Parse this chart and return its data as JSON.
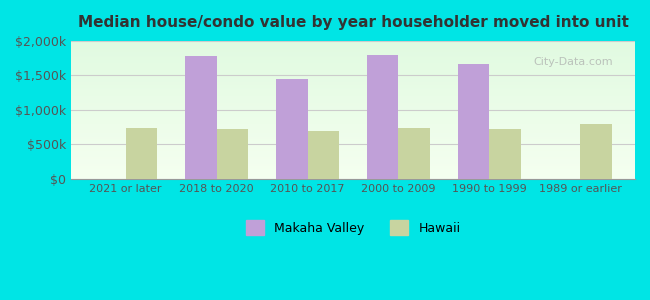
{
  "title": "Median house/condo value by year householder moved into unit",
  "categories": [
    "2021 or later",
    "2018 to 2020",
    "2010 to 2017",
    "2000 to 2009",
    "1990 to 1999",
    "1989 or earlier"
  ],
  "makaha_valley": [
    0,
    1780000,
    1450000,
    1790000,
    1660000,
    0
  ],
  "hawaii": [
    730000,
    720000,
    690000,
    730000,
    720000,
    800000
  ],
  "makaha_color": "#c0a0d8",
  "hawaii_color": "#c8d4a0",
  "background_color": "#00e5e5",
  "grid_color": "#cccccc",
  "title_color": "#333333",
  "tick_color": "#555555",
  "ylim": [
    0,
    2000000
  ],
  "yticks": [
    0,
    500000,
    1000000,
    1500000,
    2000000
  ],
  "ytick_labels": [
    "$0",
    "$500k",
    "$1,000k",
    "$1,500k",
    "$2,000k"
  ],
  "legend_makaha": "Makaha Valley",
  "legend_hawaii": "Hawaii",
  "bar_width": 0.35
}
